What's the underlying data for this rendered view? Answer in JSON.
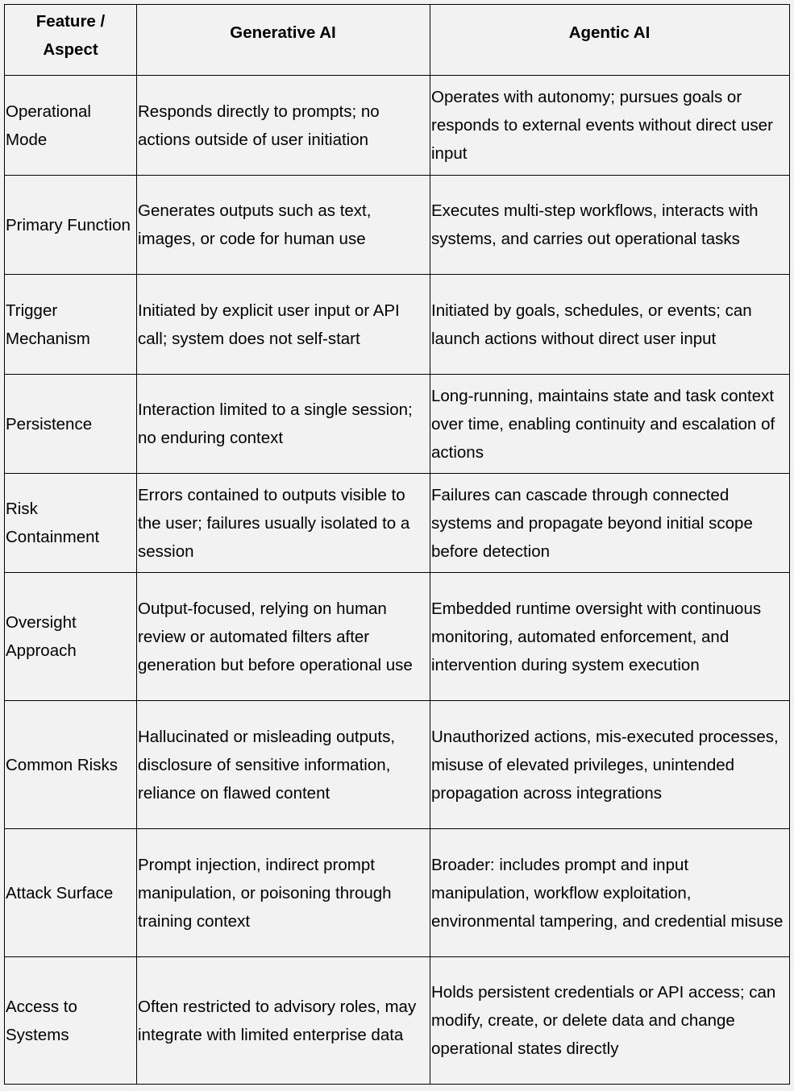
{
  "header": [
    "Feature / Aspect",
    "Generative AI",
    "Agentic AI"
  ],
  "rows": [
    [
      "Operational Mode",
      "Responds directly to prompts; no actions outside of user initiation",
      "Operates with autonomy; pursues goals or responds to external events without direct user input"
    ],
    [
      "Primary Function",
      "Generates outputs such as text, images, or code for human use",
      "Executes multi-step workflows, interacts with systems, and carries out operational tasks"
    ],
    [
      "Trigger Mechanism",
      "Initiated by explicit user input or API call; system does not self-start",
      "Initiated by goals, schedules, or events; can launch actions without direct user input"
    ],
    [
      "Persistence",
      "Interaction limited to a single session; no enduring context",
      "Long-running, maintains state and task context over time, enabling continuity and escalation of actions"
    ],
    [
      "Risk Containment",
      "Errors contained to outputs visible to the user; failures usually isolated to a session",
      "Failures can cascade through connected systems and propagate beyond initial scope before detection"
    ],
    [
      "Oversight Approach",
      "Output-focused, relying on human review or automated filters after generation but before operational use",
      "Embedded runtime oversight with continuous monitoring, automated enforcement, and intervention during system execution"
    ],
    [
      "Common Risks",
      "Hallucinated or misleading outputs, disclosure of sensitive information, reliance on flawed content",
      "Unauthorized actions, mis-executed processes, misuse of elevated privileges, unintended propagation across integrations"
    ],
    [
      "Attack Surface",
      "Prompt injection, indirect prompt manipulation, or poisoning through training context",
      "Broader: includes prompt and input manipulation, workflow exploitation, environmental tampering, and credential misuse"
    ],
    [
      "Access to Systems",
      "Often restricted to advisory roles, may integrate with limited enterprise data",
      "Holds persistent credentials or API access; can modify, create, or delete data and change operational states directly"
    ]
  ]
}
